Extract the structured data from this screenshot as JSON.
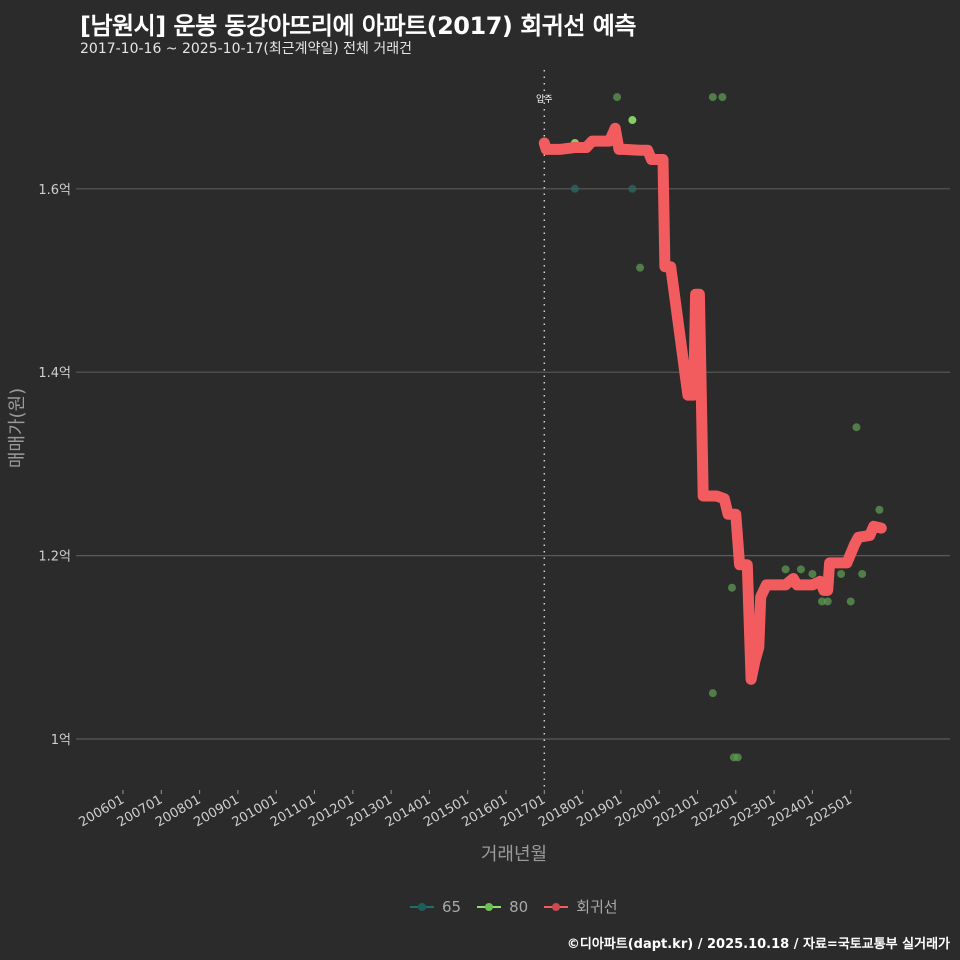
{
  "header": {
    "title": "[남원시] 운봉 동강아뜨리에 아파트(2017) 회귀선 예측",
    "subtitle": "2017-10-16 ~ 2025-10-17(최근계약일) 전체 거래건"
  },
  "footer": {
    "credit": "©디아파트(dapt.kr) / 2025.10.18 / 자료=국토교통부 실거래가"
  },
  "legend": {
    "items": [
      {
        "label": "65",
        "color": "#1f8a80"
      },
      {
        "label": "80",
        "color": "#8ee06a"
      },
      {
        "label": "회귀선",
        "color": "#f25c5f"
      }
    ]
  },
  "colors": {
    "background": "#2b2b2c",
    "grid": "#5a5a5a",
    "regression": "#f25c5f",
    "size65": "#2c6b63",
    "size80": "#8ee06a",
    "size80_dim": "#4f8a45"
  },
  "chart_data": {
    "type": "line",
    "title": "[남원시] 운봉 동강아뜨리에 아파트(2017) 회귀선 예측",
    "subtitle": "2017-10-16 ~ 2025-10-17(최근계약일) 전체 거래건",
    "xlabel": "거래년월",
    "ylabel": "매매가(원)",
    "x_ticks": [
      "200601",
      "200701",
      "200801",
      "200901",
      "201001",
      "201101",
      "201201",
      "201301",
      "201401",
      "201501",
      "201601",
      "201701",
      "201801",
      "201901",
      "202001",
      "202101",
      "202201",
      "202301",
      "202401",
      "202501"
    ],
    "y_ticks": [
      {
        "value": 1.0,
        "label": "1억"
      },
      {
        "value": 1.2,
        "label": "1.2억"
      },
      {
        "value": 1.4,
        "label": "1.4억"
      },
      {
        "value": 1.6,
        "label": "1.6억"
      }
    ],
    "ylim": [
      0.95,
      1.72
    ],
    "xlim": [
      2005.5,
      2026.3
    ],
    "grid": true,
    "legend_position": "bottom",
    "annotations": [
      {
        "x": 2017.0,
        "label": "입주",
        "style": "dotted-vertical-line"
      }
    ],
    "series": [
      {
        "name": "회귀선",
        "type": "line",
        "points": [
          [
            2017.0,
            1.65
          ],
          [
            2017.05,
            1.643
          ],
          [
            2017.4,
            1.643
          ],
          [
            2017.8,
            1.645
          ],
          [
            2018.1,
            1.645
          ],
          [
            2018.25,
            1.652
          ],
          [
            2018.7,
            1.652
          ],
          [
            2018.85,
            1.666
          ],
          [
            2018.95,
            1.643
          ],
          [
            2019.1,
            1.643
          ],
          [
            2019.5,
            1.642
          ],
          [
            2019.7,
            1.642
          ],
          [
            2019.8,
            1.632
          ],
          [
            2020.1,
            1.632
          ],
          [
            2020.15,
            1.515
          ],
          [
            2020.3,
            1.515
          ],
          [
            2020.75,
            1.375
          ],
          [
            2020.9,
            1.375
          ],
          [
            2020.95,
            1.485
          ],
          [
            2021.05,
            1.485
          ],
          [
            2021.15,
            1.265
          ],
          [
            2021.5,
            1.265
          ],
          [
            2021.7,
            1.262
          ],
          [
            2021.8,
            1.245
          ],
          [
            2022.0,
            1.245
          ],
          [
            2022.1,
            1.19
          ],
          [
            2022.3,
            1.19
          ],
          [
            2022.4,
            1.065
          ],
          [
            2022.5,
            1.085
          ],
          [
            2022.6,
            1.1
          ],
          [
            2022.65,
            1.155
          ],
          [
            2022.8,
            1.168
          ],
          [
            2023.3,
            1.168
          ],
          [
            2023.5,
            1.175
          ],
          [
            2023.6,
            1.168
          ],
          [
            2024.0,
            1.168
          ],
          [
            2024.2,
            1.172
          ],
          [
            2024.3,
            1.162
          ],
          [
            2024.4,
            1.162
          ],
          [
            2024.45,
            1.192
          ],
          [
            2024.9,
            1.192
          ],
          [
            2025.1,
            1.212
          ],
          [
            2025.2,
            1.22
          ],
          [
            2025.5,
            1.222
          ],
          [
            2025.6,
            1.232
          ],
          [
            2025.8,
            1.23
          ]
        ]
      },
      {
        "name": "65",
        "type": "scatter",
        "points": [
          [
            2017.8,
            1.6
          ],
          [
            2019.3,
            1.6
          ]
        ]
      },
      {
        "name": "80",
        "type": "scatter",
        "points": [
          [
            2017.8,
            1.65
          ],
          [
            2019.3,
            1.675
          ],
          [
            2018.9,
            1.7
          ],
          [
            2019.5,
            1.514
          ],
          [
            2021.4,
            1.7
          ],
          [
            2021.65,
            1.7
          ],
          [
            2021.4,
            1.05
          ],
          [
            2021.9,
            1.165
          ],
          [
            2021.95,
            0.98
          ],
          [
            2022.05,
            0.98
          ],
          [
            2022.6,
            1.13
          ],
          [
            2023.3,
            1.185
          ],
          [
            2023.7,
            1.185
          ],
          [
            2024.0,
            1.18
          ],
          [
            2024.25,
            1.15
          ],
          [
            2024.4,
            1.15
          ],
          [
            2024.75,
            1.18
          ],
          [
            2025.0,
            1.15
          ],
          [
            2025.15,
            1.34
          ],
          [
            2025.3,
            1.18
          ],
          [
            2025.75,
            1.25
          ]
        ]
      }
    ]
  }
}
